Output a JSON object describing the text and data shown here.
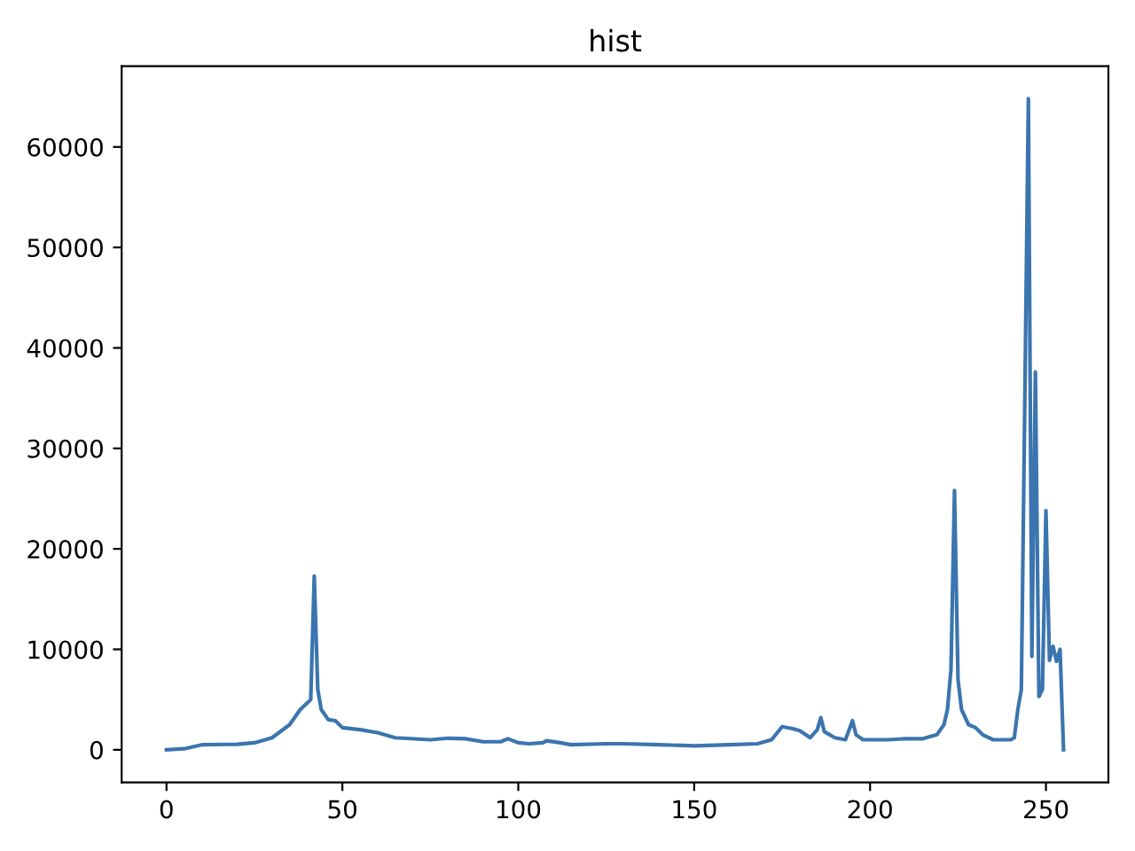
{
  "chart_data": {
    "type": "line",
    "title": "hist",
    "x": [
      0,
      5,
      10,
      20,
      25,
      30,
      35,
      38,
      41,
      42,
      43,
      44,
      46,
      48,
      50,
      55,
      60,
      65,
      75,
      80,
      85,
      90,
      95,
      97,
      100,
      103,
      107,
      108,
      112,
      115,
      125,
      130,
      140,
      150,
      160,
      168,
      172,
      175,
      178,
      180,
      183,
      185,
      186,
      187,
      190,
      193,
      195,
      196,
      198,
      205,
      210,
      215,
      219,
      221,
      222,
      223,
      224,
      225,
      226,
      228,
      230,
      232,
      235,
      240,
      241,
      242,
      243,
      244,
      245,
      246,
      247,
      248,
      249,
      250,
      251,
      252,
      253,
      254,
      255
    ],
    "series": [
      {
        "color": "#3b75af",
        "values": [
          0,
          100,
          500,
          550,
          700,
          1200,
          2500,
          4000,
          5000,
          17300,
          6000,
          4000,
          3000,
          2900,
          2200,
          2000,
          1700,
          1200,
          1000,
          1150,
          1100,
          800,
          800,
          1100,
          700,
          600,
          700,
          900,
          700,
          500,
          600,
          600,
          500,
          400,
          500,
          600,
          1000,
          2300,
          2100,
          1900,
          1200,
          2000,
          3200,
          1800,
          1200,
          1000,
          2900,
          1500,
          1000,
          1000,
          1100,
          1100,
          1500,
          2500,
          4000,
          8000,
          25800,
          7000,
          4000,
          2500,
          2200,
          1500,
          1000,
          1000,
          1200,
          4000,
          6000,
          35000,
          64800,
          9300,
          37600,
          5300,
          6000,
          23800,
          8900,
          10300,
          8800,
          10000,
          0
        ]
      }
    ],
    "xlim": [
      -12.75,
      267.75
    ],
    "ylim": [
      -3240,
      68040
    ],
    "xticks": [
      0,
      50,
      100,
      150,
      200,
      250
    ],
    "yticks": [
      0,
      10000,
      20000,
      30000,
      40000,
      50000,
      60000
    ],
    "grid": false,
    "legend": false
  }
}
